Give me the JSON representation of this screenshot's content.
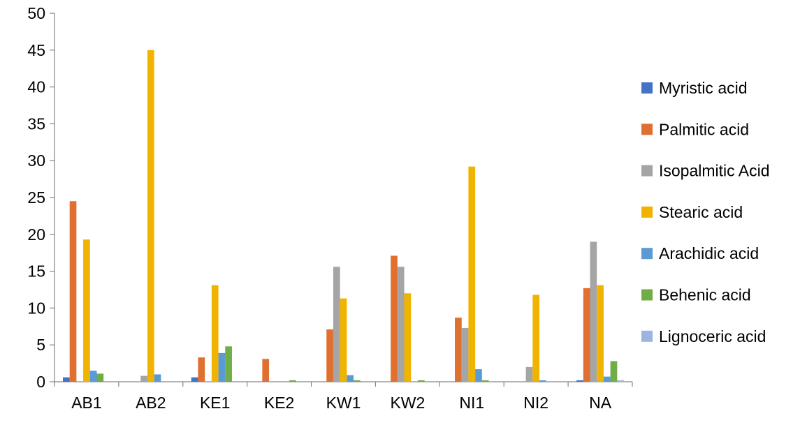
{
  "chart_data": {
    "type": "bar",
    "title": "",
    "xlabel": "",
    "ylabel": "",
    "ylim": [
      0,
      50
    ],
    "yticks": [
      "0",
      "5",
      "10",
      "15",
      "20",
      "25",
      "30",
      "35",
      "40",
      "45",
      "50"
    ],
    "grid": false,
    "legend_position": "right",
    "categories": [
      "AB1",
      "AB2",
      "KE1",
      "KE2",
      "KW1",
      "KW2",
      "NI1",
      "NI2",
      "NA"
    ],
    "series": [
      {
        "name": "Myristic acid",
        "color": "#4472C4",
        "values": [
          0.6,
          0,
          0.6,
          0,
          0,
          0,
          0,
          0,
          0.2
        ]
      },
      {
        "name": "Palmitic acid",
        "color": "#E07030",
        "values": [
          24.5,
          0,
          3.3,
          3.1,
          7.1,
          17.1,
          8.7,
          0,
          12.7
        ]
      },
      {
        "name": "Isopalmitic Acid",
        "color": "#A5A5A5",
        "values": [
          0,
          0.8,
          0,
          0,
          15.6,
          15.6,
          7.3,
          2.0,
          19.0
        ]
      },
      {
        "name": "Stearic acid",
        "color": "#F0B400",
        "values": [
          19.3,
          45.0,
          13.1,
          0,
          11.3,
          12.0,
          29.2,
          11.8,
          13.1
        ]
      },
      {
        "name": "Arachidic acid",
        "color": "#5B9BD5",
        "values": [
          1.5,
          1.0,
          3.9,
          0,
          0.9,
          0,
          1.7,
          0.2,
          0.7
        ]
      },
      {
        "name": "Behenic acid",
        "color": "#70AD47",
        "values": [
          1.1,
          0,
          4.8,
          0.2,
          0.2,
          0.2,
          0.2,
          0,
          2.8
        ]
      },
      {
        "name": "Lignoceric acid",
        "color": "#9DB3E0",
        "values": [
          0,
          0,
          0,
          0,
          0,
          0,
          0,
          0,
          0.2
        ]
      }
    ]
  }
}
